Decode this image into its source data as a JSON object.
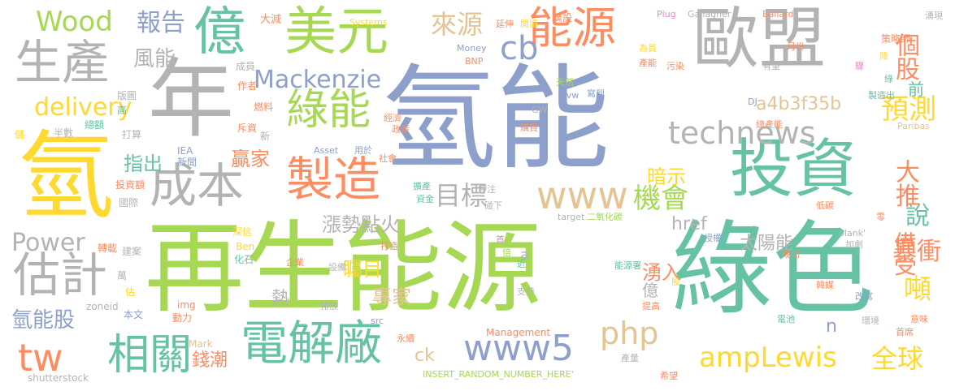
{
  "words": [
    {
      "text": "氫能",
      "color": "#8da0cb"
    },
    {
      "text": "再生能源",
      "color": "#a6d854"
    },
    {
      "text": "綠色",
      "color": "#66c2a5"
    },
    {
      "text": "氫",
      "color": "#ffd92f"
    },
    {
      "text": "年",
      "color": "#b3b3b3"
    },
    {
      "text": "歐盟",
      "color": "#b3b3b3"
    },
    {
      "text": "投資",
      "color": "#66c2a5"
    },
    {
      "text": "美元",
      "color": "#a6d854"
    },
    {
      "text": "億",
      "color": "#66c2a5"
    },
    {
      "text": "生產",
      "color": "#b3b3b3"
    },
    {
      "text": "電解廠",
      "color": "#66c2a5"
    },
    {
      "text": "製造",
      "color": "#fc8d62"
    },
    {
      "text": "能源",
      "color": "#fc8d62"
    },
    {
      "text": "成本",
      "color": "#b3b3b3"
    },
    {
      "text": "估計",
      "color": "#b3b3b3"
    },
    {
      "text": "相關",
      "color": "#66c2a5"
    },
    {
      "text": "綠能",
      "color": "#a6d854"
    },
    {
      "text": "technews",
      "color": "#b3b3b3"
    },
    {
      "text": "www",
      "color": "#e5c494"
    },
    {
      "text": "www5",
      "color": "#8da0cb"
    },
    {
      "text": "ampLewis",
      "color": "#ffd92f"
    },
    {
      "text": "php",
      "color": "#e5c494"
    },
    {
      "text": "Mackenzie",
      "color": "#8da0cb"
    },
    {
      "text": "delivery",
      "color": "#ffd92f"
    },
    {
      "text": "Wood",
      "color": "#a6d854"
    },
    {
      "text": "報告",
      "color": "#8da0cb"
    },
    {
      "text": "來源",
      "color": "#e5c494"
    },
    {
      "text": "cb",
      "color": "#8da0cb"
    },
    {
      "text": "目標",
      "color": "#b3b3b3"
    },
    {
      "text": "機會",
      "color": "#a6d854"
    },
    {
      "text": "tw",
      "color": "#fc8d62"
    },
    {
      "text": "Power",
      "color": "#b3b3b3"
    },
    {
      "text": "全球",
      "color": "#ffd92f"
    },
    {
      "text": "a4b3f35b",
      "color": "#e5c494"
    },
    {
      "text": "預測",
      "color": "#ffd92f"
    },
    {
      "text": "個股",
      "color": "#fc8d62"
    },
    {
      "text": "前",
      "color": "#66c2a5"
    },
    {
      "text": "說",
      "color": "#66c2a5"
    },
    {
      "text": "大推",
      "color": "#fc8d62"
    },
    {
      "text": "備受",
      "color": "#fc8d62"
    },
    {
      "text": "暴衝",
      "color": "#fc8d62"
    },
    {
      "text": "湧入",
      "color": "#fc8d62"
    },
    {
      "text": "噸",
      "color": "#ffd92f"
    },
    {
      "text": "風能",
      "color": "#b3b3b3"
    },
    {
      "text": "指出",
      "color": "#66c2a5"
    },
    {
      "text": "贏家",
      "color": "#fc8d62"
    },
    {
      "text": "暗示",
      "color": "#ffd92f"
    },
    {
      "text": "漲勢點火",
      "color": "#b3b3b3"
    },
    {
      "text": "太陽能",
      "color": "#b3b3b3"
    },
    {
      "text": "矚目",
      "color": "#ffd92f"
    },
    {
      "text": "專家",
      "color": "#e5c494"
    },
    {
      "text": "熱",
      "color": "#b3b3b3"
    },
    {
      "text": "億",
      "color": "#b3b3b3"
    },
    {
      "text": "錢潮",
      "color": "#fc8d62"
    },
    {
      "text": "氫能股",
      "color": "#8da0cb"
    },
    {
      "text": "href",
      "color": "#b3b3b3"
    },
    {
      "text": "ck",
      "color": "#e5c494"
    },
    {
      "text": "a",
      "color": "#b3b3b3"
    },
    {
      "text": "n",
      "color": "#8da0cb"
    },
    {
      "text": "blank'",
      "color": "#b3b3b3"
    },
    {
      "text": "大減",
      "color": "#fc8d62"
    },
    {
      "text": "成員",
      "color": "#b3b3b3"
    },
    {
      "text": "作者",
      "color": "#fc8d62"
    },
    {
      "text": "版圖",
      "color": "#b3b3b3"
    },
    {
      "text": "高",
      "color": "#66c2a5"
    },
    {
      "text": "燃料",
      "color": "#fc8d62"
    },
    {
      "text": "儲",
      "color": "#ffd92f"
    },
    {
      "text": "半數",
      "color": "#b3b3b3"
    },
    {
      "text": "總額",
      "color": "#66c2a5"
    },
    {
      "text": "打算",
      "color": "#b3b3b3"
    },
    {
      "text": "斥資",
      "color": "#fc8d62"
    },
    {
      "text": "新",
      "color": "#b3b3b3"
    },
    {
      "text": "IEA",
      "color": "#8da0cb"
    },
    {
      "text": "新聞",
      "color": "#8da0cb"
    },
    {
      "text": "投資額",
      "color": "#fc8d62"
    },
    {
      "text": "國際",
      "color": "#b3b3b3"
    },
    {
      "text": "深信",
      "color": "#ffd92f"
    },
    {
      "text": "Ben",
      "color": "#ffd92f"
    },
    {
      "text": "轉載",
      "color": "#fc8d62"
    },
    {
      "text": "建案",
      "color": "#b3b3b3"
    },
    {
      "text": "化石",
      "color": "#66c2a5"
    },
    {
      "text": "萬",
      "color": "#b3b3b3"
    },
    {
      "text": "估",
      "color": "#ffd92f"
    },
    {
      "text": "zoneid",
      "color": "#b3b3b3"
    },
    {
      "text": "本文",
      "color": "#8da0cb"
    },
    {
      "text": "img",
      "color": "#fc8d62"
    },
    {
      "text": "動力",
      "color": "#fc8d62"
    },
    {
      "text": "Mark",
      "color": "#e5c494"
    },
    {
      "text": "shutterstock",
      "color": "#b3b3b3"
    },
    {
      "text": "Systems",
      "color": "#ffd92f"
    },
    {
      "text": "Money",
      "color": "#8da0cb"
    },
    {
      "text": "BNP",
      "color": "#fc8d62"
    },
    {
      "text": "延伸",
      "color": "#fc8d62"
    },
    {
      "text": "閱讀",
      "color": "#ffd92f"
    },
    {
      "text": "廣設",
      "color": "#fc8d62"
    },
    {
      "text": "Plug",
      "color": "#e78ac3"
    },
    {
      "text": "Gallagher",
      "color": "#b3b3b3"
    },
    {
      "text": "Ballard",
      "color": "#fc8d62"
    },
    {
      "text": "湧現",
      "color": "#b3b3b3"
    },
    {
      "text": "策略師",
      "color": "#fc8d62"
    },
    {
      "text": "月份",
      "color": "#fc8d62"
    },
    {
      "text": "為員",
      "color": "#ffd92f"
    },
    {
      "text": "產能",
      "color": "#fc8d62"
    },
    {
      "text": "天然",
      "color": "#a6d854"
    },
    {
      "text": "avw",
      "color": "#8da0cb"
    },
    {
      "text": "寫到",
      "color": "#8da0cb"
    },
    {
      "text": "污染",
      "color": "#fc8d62"
    },
    {
      "text": "有望",
      "color": "#b3b3b3"
    },
    {
      "text": "降",
      "color": "#ffd92f"
    },
    {
      "text": "綠",
      "color": "#66c2a5"
    },
    {
      "text": "製造出",
      "color": "#66c2a5"
    },
    {
      "text": "驟",
      "color": "#e78ac3"
    },
    {
      "text": "DJ",
      "color": "#8da0cb"
    },
    {
      "text": "總產能",
      "color": "#fc8d62"
    },
    {
      "text": "GW",
      "color": "#b3b3b3"
    },
    {
      "text": "經濟",
      "color": "#fc8d62"
    },
    {
      "text": "政策",
      "color": "#fc8d62"
    },
    {
      "text": "購買",
      "color": "#fc8d62"
    },
    {
      "text": "Paribas",
      "color": "#e5c494"
    },
    {
      "text": "Asset",
      "color": "#8da0cb"
    },
    {
      "text": "用於",
      "color": "#8da0cb"
    },
    {
      "text": "社會",
      "color": "#fc8d62"
    },
    {
      "text": "擴產",
      "color": "#66c2a5"
    },
    {
      "text": "資金",
      "color": "#66c2a5"
    },
    {
      "text": "押注",
      "color": "#b3b3b3"
    },
    {
      "text": "碰下",
      "color": "#b3b3b3"
    },
    {
      "text": "二氧化碳",
      "color": "#a6d854"
    },
    {
      "text": "target",
      "color": "#b3b3b3"
    },
    {
      "text": "低碳",
      "color": "#fc8d62"
    },
    {
      "text": "零",
      "color": "#fc8d62"
    },
    {
      "text": "打造",
      "color": "#fc8d62"
    },
    {
      "text": "首",
      "color": "#e78ac3"
    },
    {
      "text": "倍",
      "color": "#a6d854"
    },
    {
      "text": "近",
      "color": "#66c2a5"
    },
    {
      "text": "授權",
      "color": "#8da0cb"
    },
    {
      "text": "加劇",
      "color": "#b3b3b3"
    },
    {
      "text": "成功",
      "color": "#fc8d62"
    },
    {
      "text": "能源署",
      "color": "#66c2a5"
    },
    {
      "text": "股",
      "color": "#ffd92f"
    },
    {
      "text": "韓媒",
      "color": "#fc8d62"
    },
    {
      "text": "改寫",
      "color": "#8da0cb"
    },
    {
      "text": "企業",
      "color": "#fc8d62"
    },
    {
      "text": "設備",
      "color": "#b3b3b3"
    },
    {
      "text": "排放",
      "color": "#b3b3b3"
    },
    {
      "text": "支持",
      "color": "#b3b3b3"
    },
    {
      "text": "提高",
      "color": "#fc8d62"
    },
    {
      "text": "電池",
      "color": "#66c2a5"
    },
    {
      "text": "環境",
      "color": "#b3b3b3"
    },
    {
      "text": "首席",
      "color": "#fc8d62"
    },
    {
      "text": "意味",
      "color": "#fc8d62"
    },
    {
      "text": "src",
      "color": "#8da0cb"
    },
    {
      "text": "Management",
      "color": "#fc8d62"
    },
    {
      "text": "永續",
      "color": "#fc8d62"
    },
    {
      "text": "產量",
      "color": "#b3b3b3"
    },
    {
      "text": "INSERT_RANDOM_NUMBER_HERE'",
      "color": "#a6d854"
    },
    {
      "text": "希望",
      "color": "#fc8d62"
    }
  ]
}
